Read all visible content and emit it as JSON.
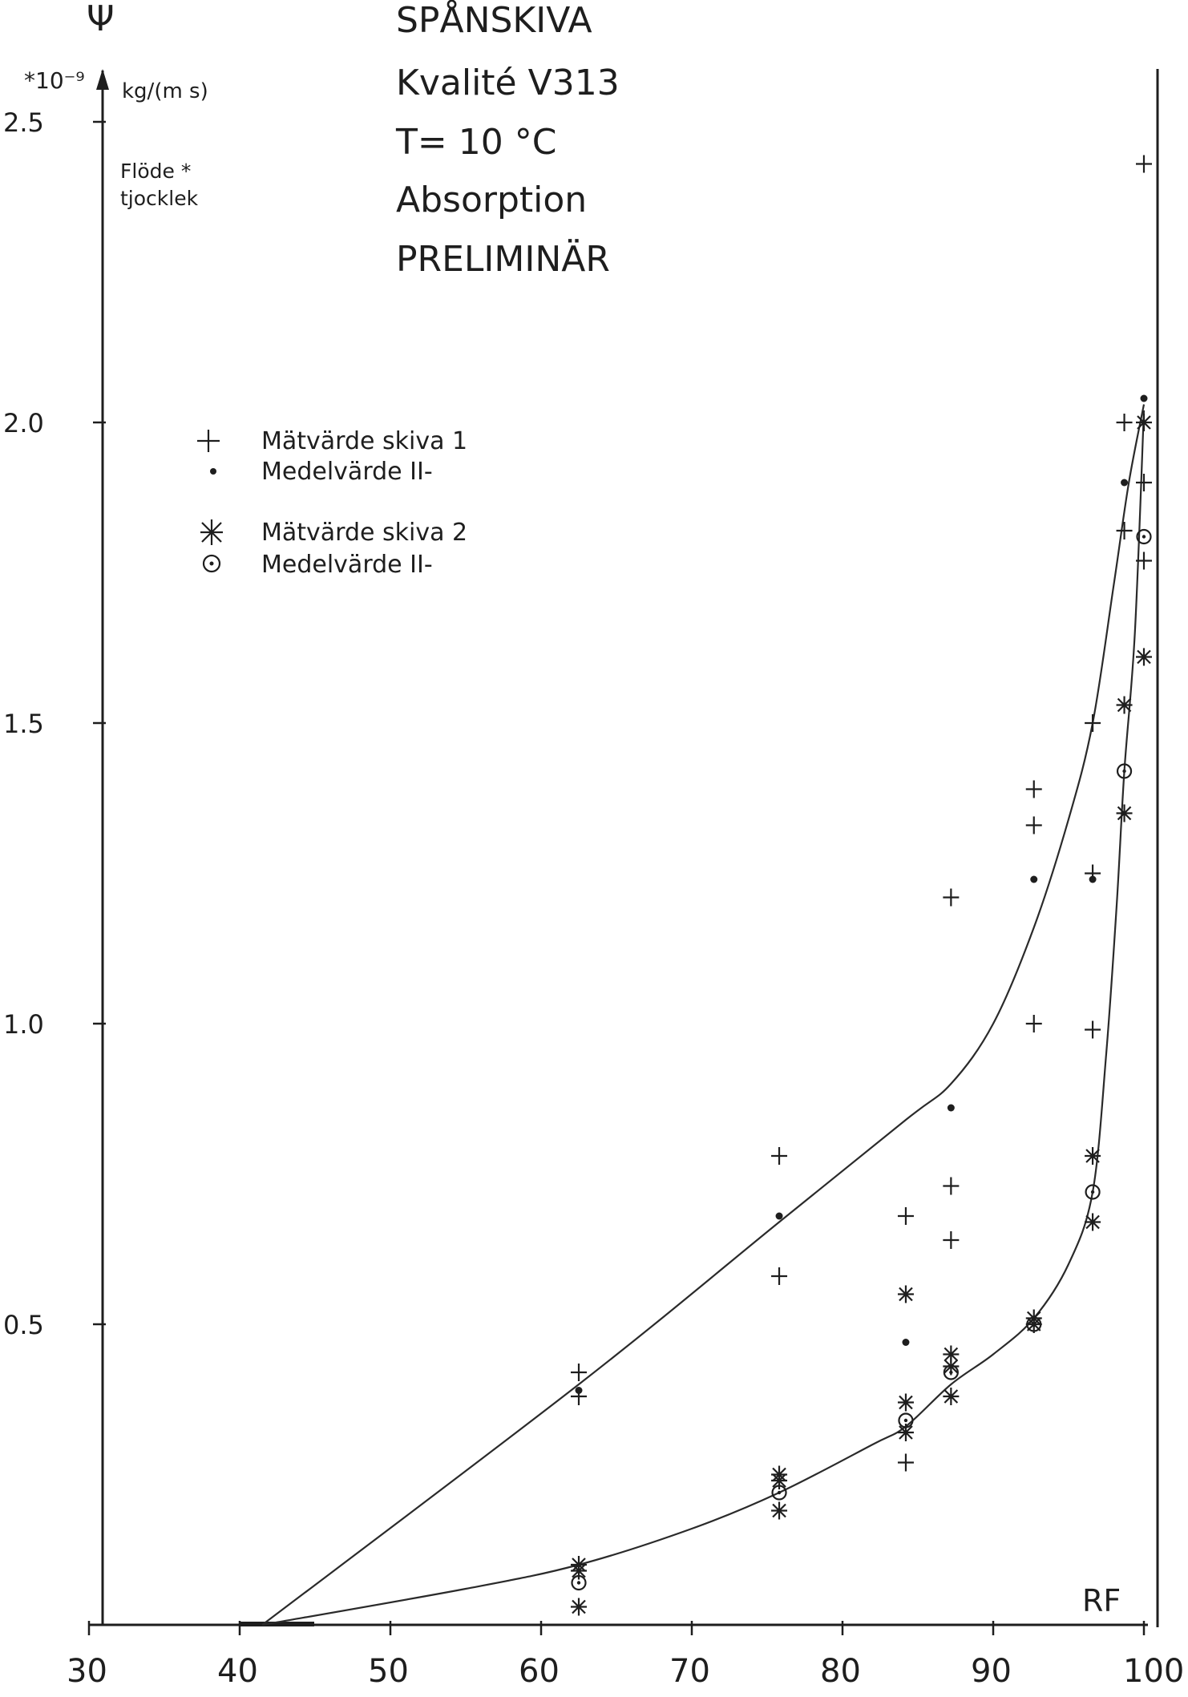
{
  "chart_data": {
    "type": "scatter",
    "y_symbol": "Ψ",
    "y_scale": "*10⁻⁹",
    "y_unit": "kg/(m s)",
    "y_description": [
      "Flöde *",
      "tjocklek"
    ],
    "title_lines": [
      "SPÅNSKIVA",
      "Kvalité V313",
      "T= 10 °C",
      "Absorption",
      "PRELIMINÄR"
    ],
    "xlabel": "RF",
    "xlim": [
      30,
      100
    ],
    "ylim": [
      0,
      2.5
    ],
    "x_ticks": [
      "30",
      "40",
      "50",
      "60",
      "70",
      "80",
      "90",
      "100 %"
    ],
    "y_ticks": [
      {
        "value": 0.5,
        "label": "0.5"
      },
      {
        "value": 1.0,
        "label": "1.0"
      },
      {
        "value": 1.5,
        "label": "1.5"
      },
      {
        "value": 2.0,
        "label": "2.0"
      },
      {
        "value": 2.5,
        "label": "2.5"
      }
    ],
    "legend": [
      {
        "symbol": "plus",
        "label": "Mätvärde skiva 1"
      },
      {
        "symbol": "dot",
        "label": "Medelvärde II-"
      },
      {
        "symbol": "star",
        "label": "Mätvärde skiva 2"
      },
      {
        "symbol": "circle-dot",
        "label": "Medelvärde II-"
      }
    ],
    "series": [
      {
        "marker": "plus",
        "points": [
          [
            62.5,
            0.42
          ],
          [
            62.5,
            0.38
          ],
          [
            75.8,
            0.78
          ],
          [
            75.8,
            0.58
          ],
          [
            84.2,
            0.68
          ],
          [
            84.2,
            0.27
          ],
          [
            87.2,
            1.21
          ],
          [
            87.2,
            0.73
          ],
          [
            87.2,
            0.64
          ],
          [
            92.7,
            1.39
          ],
          [
            92.7,
            1.33
          ],
          [
            92.7,
            1.0
          ],
          [
            96.6,
            1.5
          ],
          [
            96.6,
            1.25
          ],
          [
            96.6,
            0.99
          ],
          [
            98.7,
            2.0
          ],
          [
            98.7,
            1.82
          ],
          [
            100.0,
            2.43
          ],
          [
            100.0,
            1.9
          ],
          [
            100.0,
            1.77
          ]
        ]
      },
      {
        "marker": "dot",
        "points": [
          [
            62.5,
            0.39
          ],
          [
            75.8,
            0.68
          ],
          [
            84.2,
            0.47
          ],
          [
            87.2,
            0.86
          ],
          [
            92.7,
            1.24
          ],
          [
            96.6,
            1.24
          ],
          [
            98.7,
            1.9
          ],
          [
            100.0,
            2.04
          ]
        ]
      },
      {
        "marker": "star",
        "points": [
          [
            62.5,
            0.1
          ],
          [
            62.5,
            0.09
          ],
          [
            62.5,
            0.03
          ],
          [
            75.8,
            0.25
          ],
          [
            75.8,
            0.24
          ],
          [
            75.8,
            0.19
          ],
          [
            84.2,
            0.55
          ],
          [
            84.2,
            0.37
          ],
          [
            84.2,
            0.32
          ],
          [
            87.2,
            0.45
          ],
          [
            87.2,
            0.43
          ],
          [
            87.2,
            0.38
          ],
          [
            92.7,
            0.51
          ],
          [
            92.7,
            0.5
          ],
          [
            96.6,
            0.78
          ],
          [
            96.6,
            0.67
          ],
          [
            98.7,
            1.53
          ],
          [
            98.7,
            1.35
          ],
          [
            100.0,
            2.0
          ],
          [
            100.0,
            1.61
          ]
        ]
      },
      {
        "marker": "circle-dot",
        "points": [
          [
            62.5,
            0.07
          ],
          [
            75.8,
            0.22
          ],
          [
            84.2,
            0.34
          ],
          [
            87.2,
            0.42
          ],
          [
            92.7,
            0.5
          ],
          [
            96.6,
            0.72
          ],
          [
            98.7,
            1.42
          ],
          [
            100.0,
            1.81
          ]
        ]
      }
    ],
    "curves": [
      {
        "series": "skiva 1",
        "points": [
          [
            41.5,
            0.0
          ],
          [
            62.5,
            0.4
          ],
          [
            75.8,
            0.67
          ],
          [
            84.2,
            0.84
          ],
          [
            87.2,
            0.9
          ],
          [
            90.0,
            1.0
          ],
          [
            92.7,
            1.16
          ],
          [
            95.0,
            1.34
          ],
          [
            96.6,
            1.5
          ],
          [
            98.0,
            1.73
          ],
          [
            99.0,
            1.9
          ],
          [
            100.0,
            2.03
          ]
        ]
      },
      {
        "series": "skiva 2",
        "points": [
          [
            41.5,
            0.0
          ],
          [
            55.0,
            0.06
          ],
          [
            62.5,
            0.1
          ],
          [
            70.0,
            0.16
          ],
          [
            75.8,
            0.22
          ],
          [
            82.0,
            0.3
          ],
          [
            84.2,
            0.33
          ],
          [
            87.2,
            0.4
          ],
          [
            90.0,
            0.45
          ],
          [
            92.7,
            0.51
          ],
          [
            95.0,
            0.6
          ],
          [
            96.6,
            0.72
          ],
          [
            97.5,
            0.95
          ],
          [
            98.2,
            1.2
          ],
          [
            98.7,
            1.42
          ],
          [
            99.4,
            1.65
          ],
          [
            100.0,
            2.02
          ]
        ]
      }
    ],
    "grid": false,
    "legend_placement": "top-left"
  }
}
